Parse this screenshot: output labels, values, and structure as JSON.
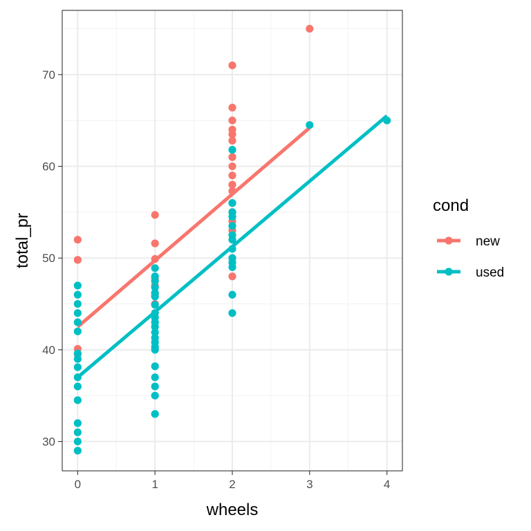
{
  "chart_data": {
    "type": "scatter",
    "title": "",
    "xlabel": "wheels",
    "ylabel": "total_pr",
    "xlim": [
      -0.2,
      4.2
    ],
    "ylim": [
      26.8,
      77.0
    ],
    "x_ticks": [
      0,
      1,
      2,
      3,
      4
    ],
    "y_ticks": [
      30,
      40,
      50,
      60,
      70
    ],
    "grid": true,
    "legend_position": "right",
    "legend_title": "cond",
    "series": [
      {
        "name": "new",
        "color": "#F8766D",
        "points": [
          {
            "x": 0,
            "y": 52.0
          },
          {
            "x": 0,
            "y": 49.8
          },
          {
            "x": 0,
            "y": 40.1
          },
          {
            "x": 0,
            "y": 39.5
          },
          {
            "x": 1,
            "y": 54.7
          },
          {
            "x": 1,
            "y": 51.6
          },
          {
            "x": 1,
            "y": 49.9
          },
          {
            "x": 1,
            "y": 47.8
          },
          {
            "x": 1,
            "y": 47.0
          },
          {
            "x": 1,
            "y": 46.0
          },
          {
            "x": 1,
            "y": 45.0
          },
          {
            "x": 1,
            "y": 44.0
          },
          {
            "x": 2,
            "y": 71.0
          },
          {
            "x": 2,
            "y": 66.4
          },
          {
            "x": 2,
            "y": 65.0
          },
          {
            "x": 2,
            "y": 64.0
          },
          {
            "x": 2,
            "y": 63.5
          },
          {
            "x": 2,
            "y": 62.8
          },
          {
            "x": 2,
            "y": 61.0
          },
          {
            "x": 2,
            "y": 60.0
          },
          {
            "x": 2,
            "y": 59.0
          },
          {
            "x": 2,
            "y": 58.0
          },
          {
            "x": 2,
            "y": 57.3
          },
          {
            "x": 2,
            "y": 56.0
          },
          {
            "x": 2,
            "y": 55.0
          },
          {
            "x": 2,
            "y": 54.0
          },
          {
            "x": 2,
            "y": 53.0
          },
          {
            "x": 2,
            "y": 50.0
          },
          {
            "x": 2,
            "y": 48.0
          },
          {
            "x": 3,
            "y": 75.0
          }
        ],
        "trend": {
          "x": [
            0,
            3
          ],
          "y": [
            42.5,
            64.2
          ]
        }
      },
      {
        "name": "used",
        "color": "#00BFC4",
        "points": [
          {
            "x": 0,
            "y": 47.0
          },
          {
            "x": 0,
            "y": 46.0
          },
          {
            "x": 0,
            "y": 45.0
          },
          {
            "x": 0,
            "y": 44.0
          },
          {
            "x": 0,
            "y": 43.0
          },
          {
            "x": 0,
            "y": 42.0
          },
          {
            "x": 0,
            "y": 39.6
          },
          {
            "x": 0,
            "y": 39.0
          },
          {
            "x": 0,
            "y": 38.1
          },
          {
            "x": 0,
            "y": 37.0
          },
          {
            "x": 0,
            "y": 36.0
          },
          {
            "x": 0,
            "y": 34.5
          },
          {
            "x": 0,
            "y": 32.0
          },
          {
            "x": 0,
            "y": 31.0
          },
          {
            "x": 0,
            "y": 30.0
          },
          {
            "x": 0,
            "y": 29.0
          },
          {
            "x": 1,
            "y": 48.9
          },
          {
            "x": 1,
            "y": 48.0
          },
          {
            "x": 1,
            "y": 47.5
          },
          {
            "x": 1,
            "y": 46.8
          },
          {
            "x": 1,
            "y": 46.2
          },
          {
            "x": 1,
            "y": 45.8
          },
          {
            "x": 1,
            "y": 44.9
          },
          {
            "x": 1,
            "y": 44.0
          },
          {
            "x": 1,
            "y": 43.5
          },
          {
            "x": 1,
            "y": 43.0
          },
          {
            "x": 1,
            "y": 42.5
          },
          {
            "x": 1,
            "y": 41.9
          },
          {
            "x": 1,
            "y": 41.3
          },
          {
            "x": 1,
            "y": 40.8
          },
          {
            "x": 1,
            "y": 40.3
          },
          {
            "x": 1,
            "y": 40.0
          },
          {
            "x": 1,
            "y": 38.2
          },
          {
            "x": 1,
            "y": 37.0
          },
          {
            "x": 1,
            "y": 36.0
          },
          {
            "x": 1,
            "y": 35.0
          },
          {
            "x": 1,
            "y": 33.0
          },
          {
            "x": 2,
            "y": 61.8
          },
          {
            "x": 2,
            "y": 56.0
          },
          {
            "x": 2,
            "y": 55.0
          },
          {
            "x": 2,
            "y": 54.5
          },
          {
            "x": 2,
            "y": 53.5
          },
          {
            "x": 2,
            "y": 52.5
          },
          {
            "x": 2,
            "y": 52.0
          },
          {
            "x": 2,
            "y": 51.0
          },
          {
            "x": 2,
            "y": 50.0
          },
          {
            "x": 2,
            "y": 49.5
          },
          {
            "x": 2,
            "y": 49.0
          },
          {
            "x": 2,
            "y": 46.0
          },
          {
            "x": 2,
            "y": 44.0
          },
          {
            "x": 3,
            "y": 64.5
          },
          {
            "x": 4,
            "y": 65.0
          }
        ],
        "trend": {
          "x": [
            0,
            4
          ],
          "y": [
            37.0,
            65.5
          ]
        }
      }
    ]
  }
}
